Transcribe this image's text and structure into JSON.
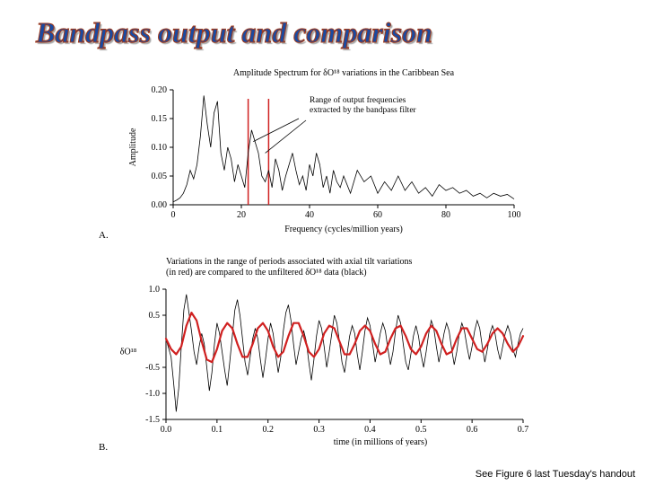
{
  "title": "Bandpass output and comparison",
  "footer": "See Figure 6 last Tuesday's handout",
  "topChart": {
    "title": "Amplitude Spectrum for δO¹⁸ variations in the Caribbean Sea",
    "ylabel": "Amplitude",
    "xlabel": "Frequency (cycles/million years)",
    "annotation": "Range of output frequencies\nextracted by the bandpass filter",
    "panelLabel": "A.",
    "xlim": [
      0,
      100
    ],
    "ylim": [
      0,
      0.2
    ],
    "xticks": [
      0,
      20,
      40,
      60,
      80,
      100
    ],
    "yticks": [
      0.0,
      0.05,
      0.1,
      0.15,
      0.2
    ],
    "xtick_labels": [
      "0",
      "20",
      "40",
      "60",
      "80",
      "100"
    ],
    "ytick_labels": [
      "0.00",
      "0.05",
      "0.10",
      "0.15",
      "0.20"
    ],
    "line_color": "#000000",
    "line_width": 0.8,
    "highlight_color": "#d02020",
    "highlight_xrange": [
      22,
      28
    ],
    "background_color": "#ffffff",
    "label_fontsize": 10,
    "tick_fontsize": 10,
    "data": [
      [
        0,
        0.005
      ],
      [
        1,
        0.008
      ],
      [
        2,
        0.012
      ],
      [
        3,
        0.02
      ],
      [
        4,
        0.035
      ],
      [
        5,
        0.06
      ],
      [
        6,
        0.045
      ],
      [
        7,
        0.07
      ],
      [
        8,
        0.12
      ],
      [
        9,
        0.19
      ],
      [
        10,
        0.14
      ],
      [
        11,
        0.1
      ],
      [
        12,
        0.16
      ],
      [
        13,
        0.18
      ],
      [
        14,
        0.09
      ],
      [
        15,
        0.06
      ],
      [
        16,
        0.1
      ],
      [
        17,
        0.08
      ],
      [
        18,
        0.04
      ],
      [
        19,
        0.07
      ],
      [
        20,
        0.05
      ],
      [
        21,
        0.03
      ],
      [
        22,
        0.09
      ],
      [
        23,
        0.13
      ],
      [
        24,
        0.11
      ],
      [
        25,
        0.09
      ],
      [
        26,
        0.05
      ],
      [
        27,
        0.04
      ],
      [
        28,
        0.06
      ],
      [
        29,
        0.03
      ],
      [
        30,
        0.08
      ],
      [
        31,
        0.06
      ],
      [
        32,
        0.025
      ],
      [
        33,
        0.05
      ],
      [
        34,
        0.07
      ],
      [
        35,
        0.09
      ],
      [
        36,
        0.06
      ],
      [
        37,
        0.035
      ],
      [
        38,
        0.05
      ],
      [
        39,
        0.025
      ],
      [
        40,
        0.07
      ],
      [
        41,
        0.05
      ],
      [
        42,
        0.09
      ],
      [
        43,
        0.07
      ],
      [
        44,
        0.03
      ],
      [
        45,
        0.05
      ],
      [
        46,
        0.02
      ],
      [
        47,
        0.06
      ],
      [
        48,
        0.04
      ],
      [
        49,
        0.03
      ],
      [
        50,
        0.05
      ],
      [
        52,
        0.02
      ],
      [
        54,
        0.06
      ],
      [
        56,
        0.04
      ],
      [
        58,
        0.05
      ],
      [
        60,
        0.02
      ],
      [
        62,
        0.04
      ],
      [
        64,
        0.025
      ],
      [
        66,
        0.05
      ],
      [
        68,
        0.025
      ],
      [
        70,
        0.04
      ],
      [
        72,
        0.02
      ],
      [
        74,
        0.03
      ],
      [
        76,
        0.015
      ],
      [
        78,
        0.035
      ],
      [
        80,
        0.025
      ],
      [
        82,
        0.03
      ],
      [
        84,
        0.02
      ],
      [
        86,
        0.025
      ],
      [
        88,
        0.015
      ],
      [
        90,
        0.02
      ],
      [
        92,
        0.012
      ],
      [
        94,
        0.02
      ],
      [
        96,
        0.015
      ],
      [
        98,
        0.018
      ],
      [
        100,
        0.01
      ]
    ]
  },
  "bottomChart": {
    "title_line1": "Variations in the range of periods associated with axial tilt variations",
    "title_line2": "(in red) are compared to the unfiltered  δO¹⁸ data (black)",
    "ylabel": "δO¹⁸",
    "xlabel": "time (in millions of years)",
    "panelLabel": "B.",
    "xlim": [
      0.0,
      0.7
    ],
    "ylim": [
      -1.5,
      1.0
    ],
    "xticks": [
      0.0,
      0.1,
      0.2,
      0.3,
      0.4,
      0.5,
      0.6,
      0.7
    ],
    "yticks": [
      -1.5,
      -1.0,
      -0.5,
      0.5,
      1.0
    ],
    "xtick_labels": [
      "0.0",
      "0.1",
      "0.2",
      "0.3",
      "0.4",
      "0.5",
      "0.6",
      "0.7"
    ],
    "ytick_labels": [
      "-1.5",
      "-1.0",
      "-0.5",
      "0.5",
      "1.0"
    ],
    "black_color": "#000000",
    "red_color": "#d02020",
    "black_width": 0.8,
    "red_width": 2.2,
    "background_color": "#ffffff",
    "label_fontsize": 10,
    "tick_fontsize": 10,
    "black_data": [
      [
        0.0,
        0.05
      ],
      [
        0.01,
        -0.3
      ],
      [
        0.015,
        -0.8
      ],
      [
        0.02,
        -1.35
      ],
      [
        0.025,
        -0.9
      ],
      [
        0.03,
        -0.1
      ],
      [
        0.035,
        0.6
      ],
      [
        0.04,
        0.9
      ],
      [
        0.045,
        0.55
      ],
      [
        0.05,
        0.2
      ],
      [
        0.055,
        -0.2
      ],
      [
        0.06,
        -0.45
      ],
      [
        0.065,
        -0.1
      ],
      [
        0.07,
        0.15
      ],
      [
        0.075,
        -0.05
      ],
      [
        0.08,
        -0.5
      ],
      [
        0.085,
        -0.95
      ],
      [
        0.09,
        -0.6
      ],
      [
        0.095,
        -0.05
      ],
      [
        0.1,
        0.35
      ],
      [
        0.105,
        0.15
      ],
      [
        0.11,
        -0.2
      ],
      [
        0.115,
        -0.55
      ],
      [
        0.12,
        -0.85
      ],
      [
        0.125,
        -0.4
      ],
      [
        0.13,
        0.1
      ],
      [
        0.135,
        0.6
      ],
      [
        0.14,
        0.8
      ],
      [
        0.145,
        0.5
      ],
      [
        0.15,
        0.05
      ],
      [
        0.155,
        -0.4
      ],
      [
        0.16,
        -0.65
      ],
      [
        0.165,
        -0.3
      ],
      [
        0.17,
        0.05
      ],
      [
        0.175,
        0.25
      ],
      [
        0.18,
        0.05
      ],
      [
        0.185,
        -0.35
      ],
      [
        0.19,
        -0.7
      ],
      [
        0.195,
        -0.35
      ],
      [
        0.2,
        0.05
      ],
      [
        0.205,
        0.35
      ],
      [
        0.21,
        0.15
      ],
      [
        0.215,
        -0.25
      ],
      [
        0.22,
        -0.6
      ],
      [
        0.225,
        -0.3
      ],
      [
        0.23,
        0.2
      ],
      [
        0.235,
        0.55
      ],
      [
        0.24,
        0.7
      ],
      [
        0.245,
        0.4
      ],
      [
        0.25,
        -0.05
      ],
      [
        0.255,
        -0.45
      ],
      [
        0.26,
        -0.2
      ],
      [
        0.265,
        0.05
      ],
      [
        0.27,
        0.2
      ],
      [
        0.275,
        0.0
      ],
      [
        0.28,
        -0.4
      ],
      [
        0.285,
        -0.75
      ],
      [
        0.29,
        -0.35
      ],
      [
        0.295,
        0.1
      ],
      [
        0.3,
        0.4
      ],
      [
        0.305,
        0.25
      ],
      [
        0.31,
        -0.1
      ],
      [
        0.315,
        -0.5
      ],
      [
        0.32,
        -0.2
      ],
      [
        0.325,
        0.15
      ],
      [
        0.33,
        0.5
      ],
      [
        0.335,
        0.35
      ],
      [
        0.34,
        0.0
      ],
      [
        0.345,
        -0.4
      ],
      [
        0.35,
        -0.6
      ],
      [
        0.355,
        -0.25
      ],
      [
        0.36,
        0.1
      ],
      [
        0.365,
        0.3
      ],
      [
        0.37,
        0.15
      ],
      [
        0.375,
        -0.25
      ],
      [
        0.38,
        -0.55
      ],
      [
        0.385,
        -0.2
      ],
      [
        0.39,
        0.2
      ],
      [
        0.395,
        0.45
      ],
      [
        0.4,
        0.3
      ],
      [
        0.405,
        -0.05
      ],
      [
        0.41,
        -0.4
      ],
      [
        0.415,
        -0.15
      ],
      [
        0.42,
        0.15
      ],
      [
        0.425,
        0.35
      ],
      [
        0.43,
        0.2
      ],
      [
        0.435,
        -0.15
      ],
      [
        0.44,
        -0.45
      ],
      [
        0.445,
        -0.2
      ],
      [
        0.45,
        0.2
      ],
      [
        0.455,
        0.5
      ],
      [
        0.46,
        0.35
      ],
      [
        0.465,
        -0.05
      ],
      [
        0.47,
        -0.4
      ],
      [
        0.475,
        -0.55
      ],
      [
        0.48,
        -0.25
      ],
      [
        0.485,
        0.1
      ],
      [
        0.49,
        0.3
      ],
      [
        0.495,
        0.1
      ],
      [
        0.5,
        -0.25
      ],
      [
        0.505,
        -0.5
      ],
      [
        0.51,
        -0.2
      ],
      [
        0.515,
        0.15
      ],
      [
        0.52,
        0.4
      ],
      [
        0.525,
        0.25
      ],
      [
        0.53,
        -0.1
      ],
      [
        0.535,
        -0.4
      ],
      [
        0.54,
        -0.15
      ],
      [
        0.545,
        0.15
      ],
      [
        0.55,
        0.35
      ],
      [
        0.555,
        0.2
      ],
      [
        0.56,
        -0.15
      ],
      [
        0.565,
        -0.45
      ],
      [
        0.57,
        -0.2
      ],
      [
        0.575,
        0.15
      ],
      [
        0.58,
        0.35
      ],
      [
        0.585,
        0.2
      ],
      [
        0.59,
        -0.1
      ],
      [
        0.595,
        -0.35
      ],
      [
        0.6,
        -0.1
      ],
      [
        0.605,
        0.2
      ],
      [
        0.61,
        0.4
      ],
      [
        0.615,
        0.25
      ],
      [
        0.62,
        -0.1
      ],
      [
        0.625,
        -0.4
      ],
      [
        0.63,
        -0.15
      ],
      [
        0.635,
        0.15
      ],
      [
        0.64,
        0.3
      ],
      [
        0.645,
        0.15
      ],
      [
        0.65,
        -0.15
      ],
      [
        0.655,
        -0.35
      ],
      [
        0.66,
        -0.1
      ],
      [
        0.665,
        0.15
      ],
      [
        0.67,
        0.3
      ],
      [
        0.675,
        0.15
      ],
      [
        0.68,
        -0.15
      ],
      [
        0.685,
        -0.3
      ],
      [
        0.69,
        -0.05
      ],
      [
        0.695,
        0.15
      ],
      [
        0.7,
        0.25
      ]
    ],
    "red_data": [
      [
        0.0,
        0.05
      ],
      [
        0.01,
        -0.15
      ],
      [
        0.02,
        -0.25
      ],
      [
        0.03,
        -0.1
      ],
      [
        0.04,
        0.3
      ],
      [
        0.05,
        0.55
      ],
      [
        0.06,
        0.4
      ],
      [
        0.07,
        0.0
      ],
      [
        0.08,
        -0.35
      ],
      [
        0.09,
        -0.4
      ],
      [
        0.1,
        -0.15
      ],
      [
        0.11,
        0.2
      ],
      [
        0.12,
        0.35
      ],
      [
        0.13,
        0.25
      ],
      [
        0.14,
        -0.05
      ],
      [
        0.15,
        -0.3
      ],
      [
        0.16,
        -0.3
      ],
      [
        0.17,
        -0.05
      ],
      [
        0.18,
        0.25
      ],
      [
        0.19,
        0.35
      ],
      [
        0.2,
        0.2
      ],
      [
        0.21,
        -0.1
      ],
      [
        0.22,
        -0.3
      ],
      [
        0.23,
        -0.2
      ],
      [
        0.24,
        0.1
      ],
      [
        0.25,
        0.35
      ],
      [
        0.26,
        0.35
      ],
      [
        0.27,
        0.1
      ],
      [
        0.28,
        -0.2
      ],
      [
        0.29,
        -0.3
      ],
      [
        0.3,
        -0.15
      ],
      [
        0.31,
        0.15
      ],
      [
        0.32,
        0.3
      ],
      [
        0.33,
        0.25
      ],
      [
        0.34,
        0.0
      ],
      [
        0.35,
        -0.25
      ],
      [
        0.36,
        -0.25
      ],
      [
        0.37,
        -0.05
      ],
      [
        0.38,
        0.2
      ],
      [
        0.39,
        0.3
      ],
      [
        0.4,
        0.2
      ],
      [
        0.41,
        -0.05
      ],
      [
        0.42,
        -0.25
      ],
      [
        0.43,
        -0.2
      ],
      [
        0.44,
        0.05
      ],
      [
        0.45,
        0.25
      ],
      [
        0.46,
        0.3
      ],
      [
        0.47,
        0.1
      ],
      [
        0.48,
        -0.15
      ],
      [
        0.49,
        -0.25
      ],
      [
        0.5,
        -0.1
      ],
      [
        0.51,
        0.15
      ],
      [
        0.52,
        0.3
      ],
      [
        0.53,
        0.2
      ],
      [
        0.54,
        -0.05
      ],
      [
        0.55,
        -0.25
      ],
      [
        0.56,
        -0.2
      ],
      [
        0.57,
        0.05
      ],
      [
        0.58,
        0.25
      ],
      [
        0.59,
        0.25
      ],
      [
        0.6,
        0.05
      ],
      [
        0.61,
        -0.15
      ],
      [
        0.62,
        -0.2
      ],
      [
        0.63,
        -0.05
      ],
      [
        0.64,
        0.15
      ],
      [
        0.65,
        0.25
      ],
      [
        0.66,
        0.15
      ],
      [
        0.67,
        -0.05
      ],
      [
        0.68,
        -0.2
      ],
      [
        0.69,
        -0.1
      ],
      [
        0.7,
        0.1
      ]
    ]
  }
}
